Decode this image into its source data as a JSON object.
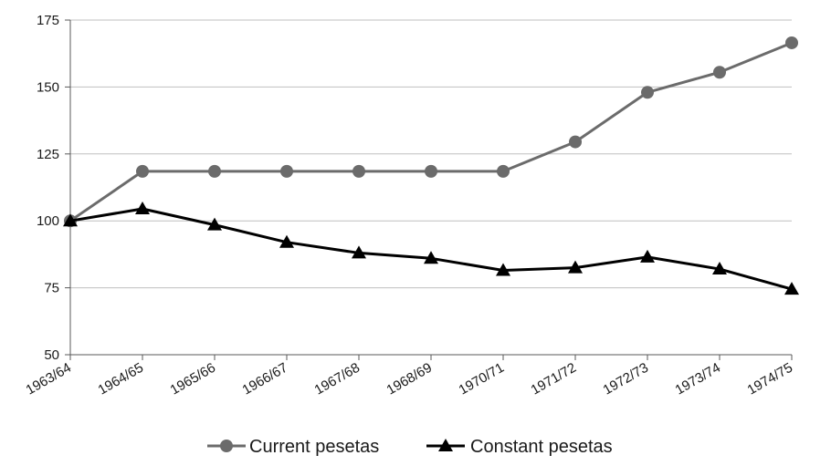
{
  "chart_data": {
    "type": "line",
    "title": "",
    "xlabel": "",
    "ylabel": "",
    "categories": [
      "1963/64",
      "1964/65",
      "1965/66",
      "1966/67",
      "1967/68",
      "1968/69",
      "1970/71",
      "1971/72",
      "1972/73",
      "1973/74",
      "1974/75"
    ],
    "ylim": [
      50,
      175
    ],
    "yticks": [
      50,
      75,
      100,
      125,
      150,
      175
    ],
    "grid": "horizontal",
    "legend_position": "bottom",
    "series": [
      {
        "name": "Current pesetas",
        "color": "#6b6b6b",
        "marker": "circle",
        "values": [
          100,
          118.5,
          118.5,
          118.5,
          118.5,
          118.5,
          118.5,
          129.5,
          148,
          155.5,
          166.5
        ]
      },
      {
        "name": "Constant pesetas",
        "color": "#000000",
        "marker": "triangle",
        "values": [
          100,
          104.5,
          98.5,
          92,
          88,
          86,
          81.5,
          82.5,
          86.5,
          82,
          74.5
        ]
      }
    ]
  }
}
